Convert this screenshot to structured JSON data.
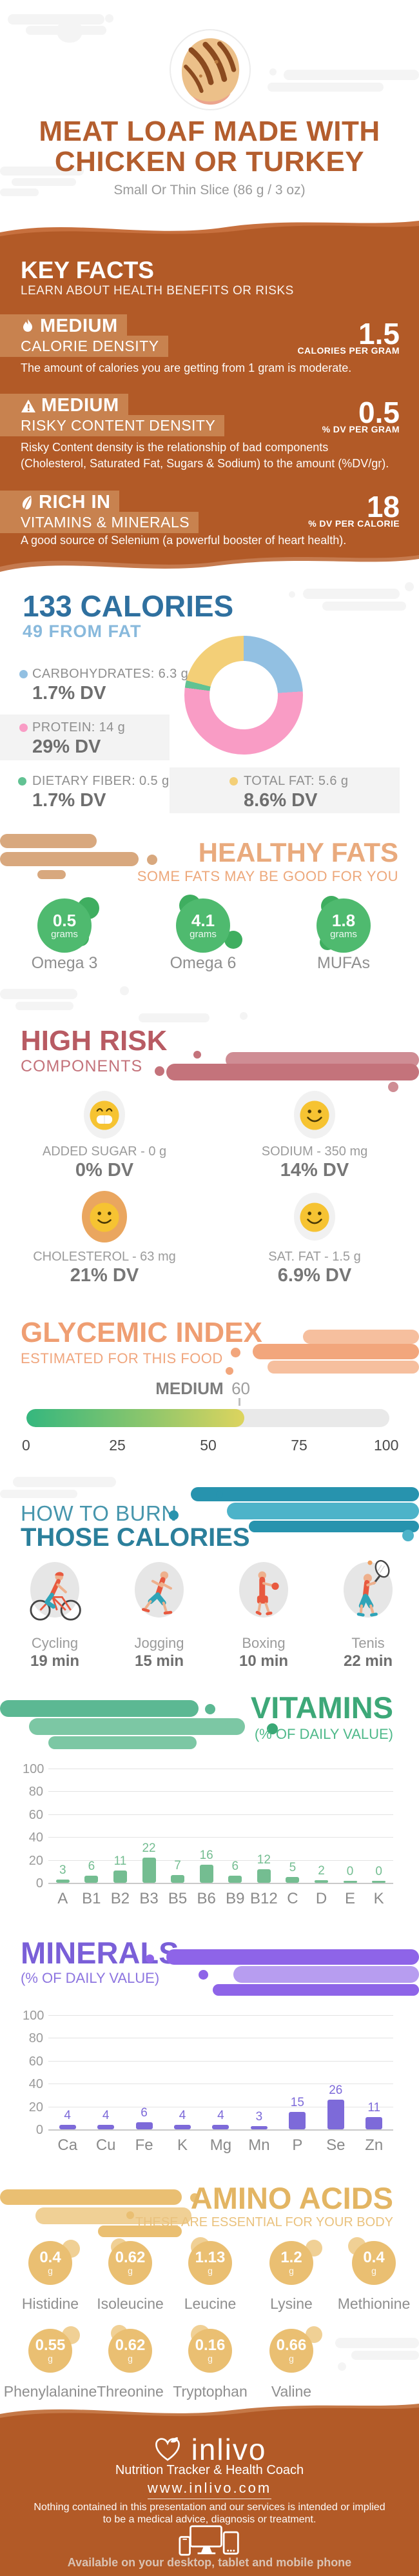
{
  "header": {
    "title_line1": "MEAT LOAF MADE WITH",
    "title_line2": "CHICKEN OR TURKEY",
    "subtitle": "Small Or Thin Slice (86 g / 3 oz)"
  },
  "key_facts": {
    "heading": "KEY FACTS",
    "subheading": "LEARN ABOUT HEALTH BENEFITS OR RISKS",
    "facts": [
      {
        "level": "MEDIUM",
        "category": "CALORIE DENSITY",
        "icon": "flame-icon",
        "value": "1.5",
        "unit": "CALORIES PER GRAM",
        "description": "The amount of calories you are getting from 1 gram is moderate."
      },
      {
        "level": "MEDIUM",
        "category": "RISKY CONTENT DENSITY",
        "icon": "warning-icon",
        "value": "0.5",
        "unit": "% DV PER GRAM",
        "description_line1": "Risky Content density is the relationship of bad components",
        "description_line2": "(Cholesterol, Saturated Fat, Sugars & Sodium) to the amount (%DV/gr)."
      },
      {
        "level": "RICH  IN",
        "category": "VITAMINS & MINERALS",
        "icon": "leaf-icon",
        "value": "18",
        "unit": "% DV PER CALORIE",
        "description": "A good source of Selenium (a powerful booster of heart health)."
      }
    ]
  },
  "calories": {
    "title": "133 CALORIES",
    "subtitle": "49 FROM FAT",
    "legend": [
      {
        "label": "CARBOHYDRATES: 6.3 g",
        "dv": "1.7% DV",
        "color": "#92c0e2"
      },
      {
        "label": "PROTEIN: 14 g",
        "dv": "29% DV",
        "color": "#f99cc5"
      },
      {
        "label": "DIETARY FIBER: 0.5 g",
        "dv": "1.7% DV",
        "color": "#62c293"
      },
      {
        "label": "TOTAL FAT: 5.6 g",
        "dv": "8.6% DV",
        "color": "#f3cf77"
      }
    ]
  },
  "healthy_fats": {
    "heading": "HEALTHY FATS",
    "subheading": "SOME FATS MAY BE GOOD FOR YOU",
    "items": [
      {
        "value": "0.5",
        "unit": "grams",
        "label": "Omega 3"
      },
      {
        "value": "4.1",
        "unit": "grams",
        "label": "Omega 6"
      },
      {
        "value": "1.8",
        "unit": "grams",
        "label": "MUFAs"
      }
    ]
  },
  "high_risk": {
    "heading": "HIGH RISK",
    "subheading": "COMPONENTS",
    "items": [
      {
        "label": "ADDED SUGAR - 0 g",
        "dv": "0% DV",
        "face": "grin-face-icon"
      },
      {
        "label": "SODIUM - 350 mg",
        "dv": "14% DV",
        "face": "smile-face-icon"
      },
      {
        "label": "CHOLESTEROL - 63 mg",
        "dv": "21% DV",
        "face": "smile-face-icon"
      },
      {
        "label": "SAT. FAT - 1.5 g",
        "dv": "6.9% DV",
        "face": "smile-face-icon"
      }
    ]
  },
  "glycemic": {
    "heading": "GLYCEMIC INDEX",
    "subheading": "ESTIMATED FOR THIS FOOD",
    "level": "MEDIUM",
    "value": "60"
  },
  "burn": {
    "heading_line1": "HOW TO BURN",
    "heading_line2": "THOSE CALORIES",
    "activities": [
      {
        "label": "Cycling",
        "time": "19 min",
        "icon": "cycling-icon"
      },
      {
        "label": "Jogging",
        "time": "15 min",
        "icon": "jogging-icon"
      },
      {
        "label": "Boxing",
        "time": "10 min",
        "icon": "boxing-icon"
      },
      {
        "label": "Tenis",
        "time": "22 min",
        "icon": "tennis-icon"
      }
    ]
  },
  "vitamins": {
    "heading": "VITAMINS",
    "subheading": "(% OF DAILY VALUE)"
  },
  "minerals": {
    "heading": "MINERALS",
    "subheading": "(% OF DAILY VALUE)"
  },
  "amino": {
    "heading": "AMINO ACIDS",
    "subheading": "THESE ARE ESSENTIAL FOR YOUR BODY",
    "unit": "g",
    "items": [
      {
        "value": "0.4",
        "label": "Histidine"
      },
      {
        "value": "0.62",
        "label": "Isoleucine"
      },
      {
        "value": "1.13",
        "label": "Leucine"
      },
      {
        "value": "1.2",
        "label": "Lysine"
      },
      {
        "value": "0.4",
        "label": "Methionine"
      },
      {
        "value": "0.55",
        "label": "Phenylalanine"
      },
      {
        "value": "0.62",
        "label": "Threonine"
      },
      {
        "value": "0.16",
        "label": "Tryptophan"
      },
      {
        "value": "0.66",
        "label": "Valine"
      }
    ]
  },
  "footer": {
    "brand": "inlivo",
    "tagline": "Nutrition Tracker & Health Coach",
    "website": "www.inlivo.com",
    "disclaimer_line1": "Nothing contained in this presentation and our services is intended or implied",
    "disclaimer_line2": "to be a medical advice, diagnosis or treatment.",
    "availability": "Available on your desktop, tablet and mobile phone"
  },
  "chart_data": [
    {
      "type": "pie",
      "title": "133 CALORIES — composition by weight",
      "slices": [
        {
          "label": "Carbohydrates",
          "grams": 6.3,
          "pct": 24,
          "color": "#92c0e2"
        },
        {
          "label": "Protein",
          "grams": 14,
          "pct": 53,
          "color": "#f99cc5"
        },
        {
          "label": "Dietary Fiber",
          "grams": 0.5,
          "pct": 2,
          "color": "#62c293"
        },
        {
          "label": "Total Fat",
          "grams": 5.6,
          "pct": 21,
          "color": "#f3cf77"
        }
      ],
      "legend_position": "left"
    },
    {
      "type": "bar",
      "title": "VITAMINS (% OF DAILY VALUE)",
      "categories": [
        "A",
        "B1",
        "B2",
        "B3",
        "B5",
        "B6",
        "B9",
        "B12",
        "C",
        "D",
        "E",
        "K"
      ],
      "values": [
        3,
        6,
        11,
        22,
        7,
        16,
        6,
        12,
        5,
        2,
        0,
        0
      ],
      "ylim": [
        0,
        100
      ],
      "y_ticks": [
        100,
        80,
        60,
        40,
        20,
        0
      ],
      "bar_color": "#74bd91",
      "grid": true
    },
    {
      "type": "bar",
      "title": "MINERALS (% OF DAILY VALUE)",
      "categories": [
        "Ca",
        "Cu",
        "Fe",
        "K",
        "Mg",
        "Mn",
        "P",
        "Se",
        "Zn"
      ],
      "values": [
        4,
        4,
        6,
        4,
        4,
        3,
        15,
        26,
        11
      ],
      "ylim": [
        0,
        100
      ],
      "y_ticks": [
        100,
        80,
        60,
        40,
        20,
        0
      ],
      "bar_color": "#7d6ad9",
      "grid": true
    },
    {
      "type": "gauge",
      "title": "GLYCEMIC INDEX",
      "label": "MEDIUM",
      "value": 60,
      "range": [
        0,
        100
      ],
      "ticks": [
        "0",
        "25",
        "50",
        "75",
        "100"
      ]
    }
  ]
}
